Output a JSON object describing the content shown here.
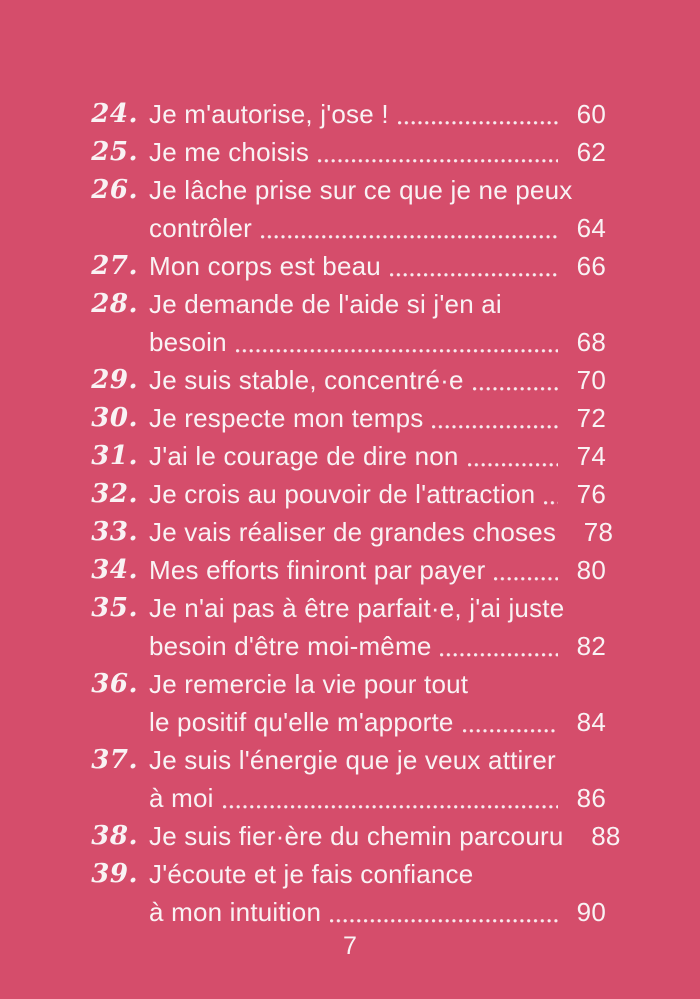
{
  "page": {
    "background_color": "#d54d6b",
    "text_color": "#f9f2f4"
  },
  "toc": {
    "entries": [
      {
        "number": "24.",
        "lines": [
          "Je m'autorise, j'ose !"
        ],
        "page": "60"
      },
      {
        "number": "25.",
        "lines": [
          "Je me choisis"
        ],
        "page": "62"
      },
      {
        "number": "26.",
        "lines": [
          "Je lâche prise sur ce que je ne peux",
          "contrôler"
        ],
        "page": "64"
      },
      {
        "number": "27.",
        "lines": [
          "Mon corps est beau"
        ],
        "page": "66"
      },
      {
        "number": "28.",
        "lines": [
          "Je demande de l'aide si j'en ai",
          "besoin"
        ],
        "page": "68"
      },
      {
        "number": "29.",
        "lines": [
          "Je suis stable, concentré·e"
        ],
        "page": "70"
      },
      {
        "number": "30.",
        "lines": [
          "Je respecte mon temps"
        ],
        "page": "72"
      },
      {
        "number": "31.",
        "lines": [
          "J'ai le courage de dire non"
        ],
        "page": "74"
      },
      {
        "number": "32.",
        "lines": [
          "Je crois au pouvoir de l'attraction"
        ],
        "page": "76"
      },
      {
        "number": "33.",
        "lines": [
          "Je vais réaliser de grandes choses"
        ],
        "page": "78"
      },
      {
        "number": "34.",
        "lines": [
          "Mes efforts finiront par payer"
        ],
        "page": "80"
      },
      {
        "number": "35.",
        "lines": [
          "Je n'ai pas à être parfait·e, j'ai juste",
          "besoin d'être moi-même"
        ],
        "page": "82"
      },
      {
        "number": "36.",
        "lines": [
          "Je remercie la vie pour tout",
          "le positif qu'elle m'apporte"
        ],
        "page": "84"
      },
      {
        "number": "37.",
        "lines": [
          "Je suis l'énergie que je veux attirer",
          "à moi"
        ],
        "page": "86"
      },
      {
        "number": "38.",
        "lines": [
          "Je suis fier·ère du chemin parcouru"
        ],
        "page": "88"
      },
      {
        "number": "39.",
        "lines": [
          "J'écoute et je fais confiance",
          "à mon intuition"
        ],
        "page": "90"
      }
    ]
  },
  "footer": {
    "page_number": "7"
  }
}
